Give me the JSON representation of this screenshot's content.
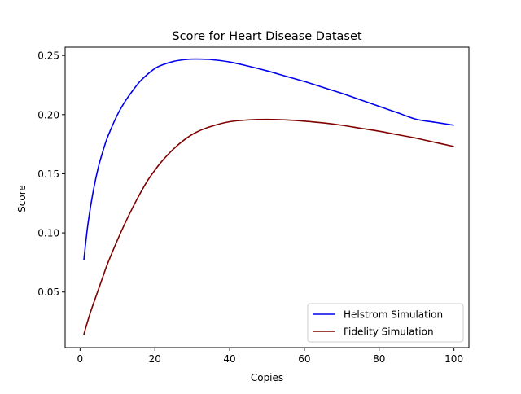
{
  "chart_data": {
    "type": "line",
    "title": "Score for Heart Disease Dataset",
    "xlabel": "Copies",
    "ylabel": "Score",
    "xlim": [
      -4,
      104
    ],
    "ylim": [
      0.003,
      0.257
    ],
    "xticks": [
      0,
      20,
      40,
      60,
      80,
      100
    ],
    "yticks": [
      0.05,
      0.1,
      0.15,
      0.2,
      0.25
    ],
    "ytick_labels": [
      "0.05",
      "0.10",
      "0.15",
      "0.20",
      "0.25"
    ],
    "grid": false,
    "legend_position": "lower right",
    "x": [
      1,
      2,
      3,
      4,
      5,
      6,
      7,
      8,
      10,
      12,
      14,
      16,
      18,
      20,
      22,
      25,
      28,
      31,
      35,
      40,
      45,
      50,
      55,
      60,
      65,
      70,
      75,
      80,
      85,
      90,
      95,
      100
    ],
    "series": [
      {
        "name": "Helstrom Simulation",
        "color": "#0000ee",
        "values": [
          0.077,
          0.105,
          0.126,
          0.143,
          0.157,
          0.168,
          0.178,
          0.186,
          0.2,
          0.211,
          0.22,
          0.228,
          0.234,
          0.239,
          0.242,
          0.245,
          0.2465,
          0.247,
          0.2465,
          0.2445,
          0.241,
          0.237,
          0.2325,
          0.228,
          0.223,
          0.218,
          0.2125,
          0.207,
          0.2015,
          0.196,
          0.1935,
          0.191
        ]
      },
      {
        "name": "Fidelity Simulation",
        "color": "#800000",
        "values": [
          0.014,
          0.025,
          0.035,
          0.044,
          0.053,
          0.062,
          0.071,
          0.079,
          0.094,
          0.108,
          0.121,
          0.133,
          0.144,
          0.153,
          0.161,
          0.171,
          0.179,
          0.185,
          0.19,
          0.194,
          0.1955,
          0.196,
          0.1955,
          0.1945,
          0.193,
          0.191,
          0.1885,
          0.186,
          0.183,
          0.18,
          0.1765,
          0.173
        ]
      }
    ]
  }
}
